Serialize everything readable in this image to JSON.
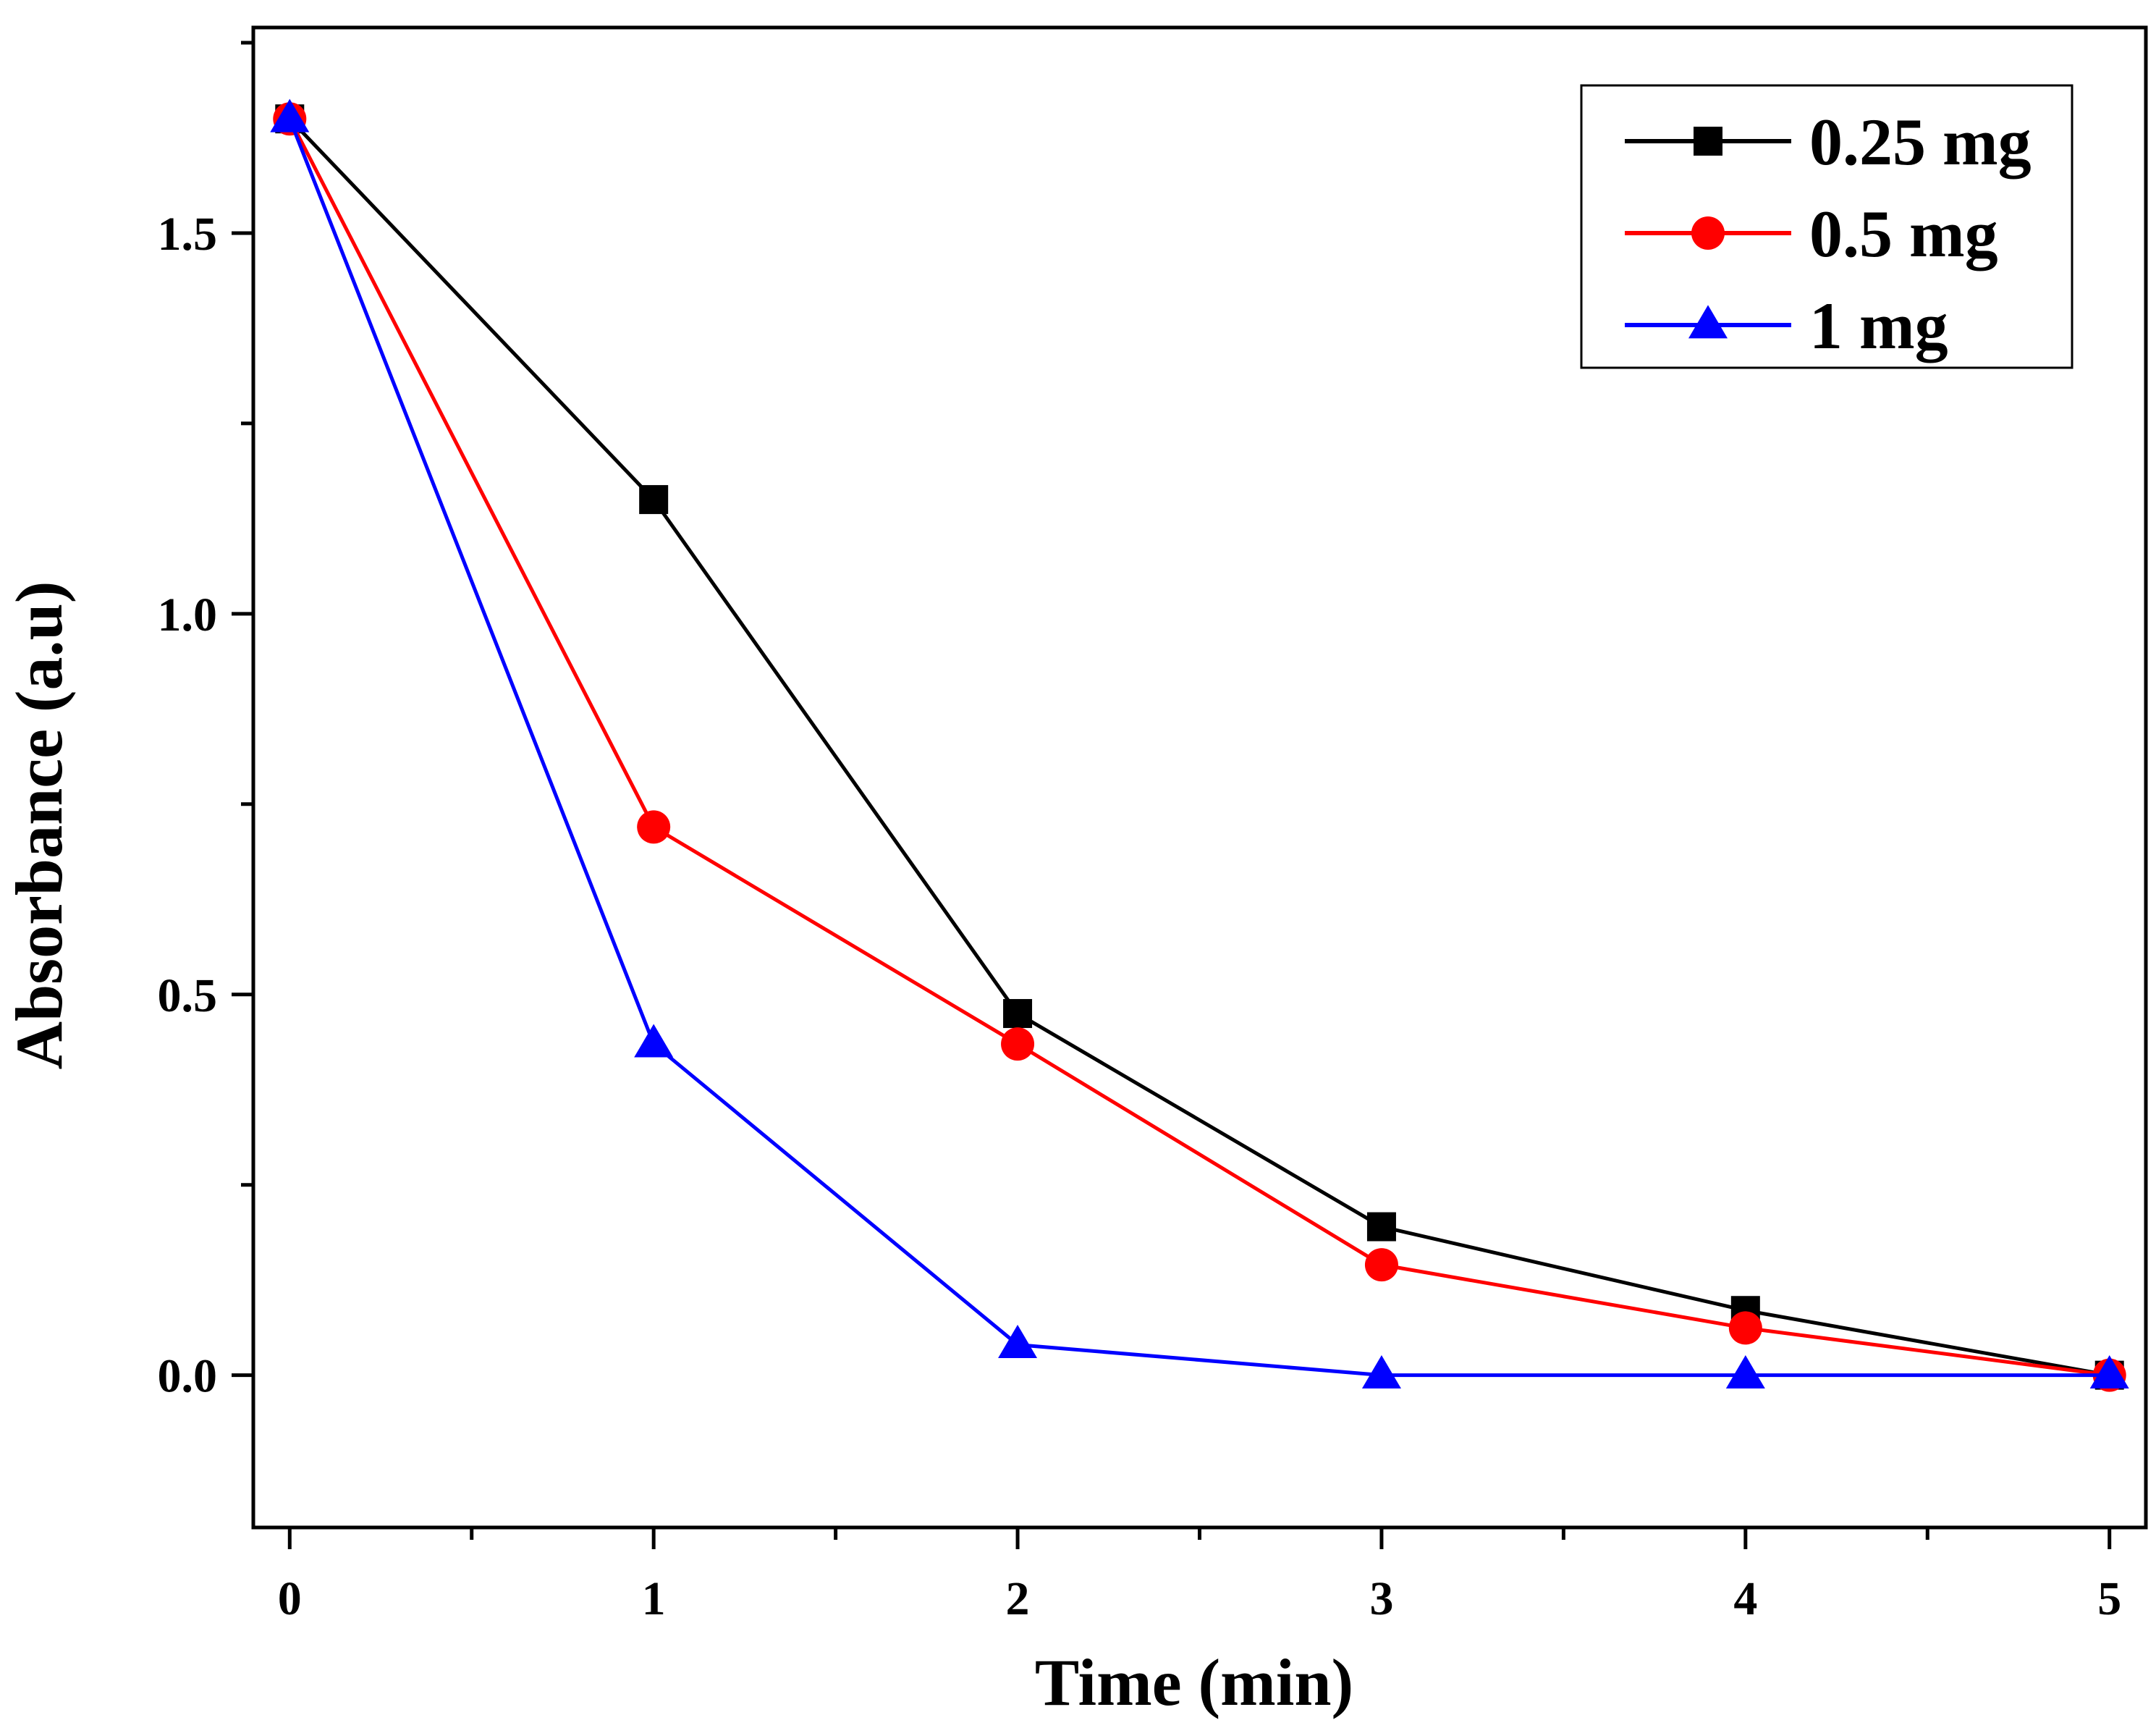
{
  "chart_data": {
    "type": "line",
    "xlabel": "Time (min)",
    "ylabel": "Absorbance (a.u)",
    "xlim": [
      -0.1,
      5.1
    ],
    "ylim": [
      -0.2,
      1.77
    ],
    "xticks": [
      0,
      1,
      2,
      3,
      4,
      5
    ],
    "yticks": [
      0.0,
      0.5,
      1.0,
      1.5
    ],
    "ytick_labels": [
      "0.0",
      "0.5",
      "1.0",
      "1.5"
    ],
    "x": [
      0,
      1,
      2,
      3,
      4,
      5
    ],
    "grid": false,
    "legend_position": "top-right",
    "series": [
      {
        "name": "0.25 mg",
        "color": "#000000",
        "marker": "square",
        "values": [
          1.65,
          1.15,
          0.475,
          0.195,
          0.085,
          0.0
        ]
      },
      {
        "name": "0.5 mg",
        "color": "#ff0000",
        "marker": "circle",
        "values": [
          1.65,
          0.72,
          0.435,
          0.145,
          0.062,
          0.0
        ]
      },
      {
        "name": "1 mg",
        "color": "#0000ff",
        "marker": "triangle",
        "values": [
          1.65,
          0.435,
          0.04,
          0.0,
          0.0,
          0.0
        ]
      }
    ]
  }
}
